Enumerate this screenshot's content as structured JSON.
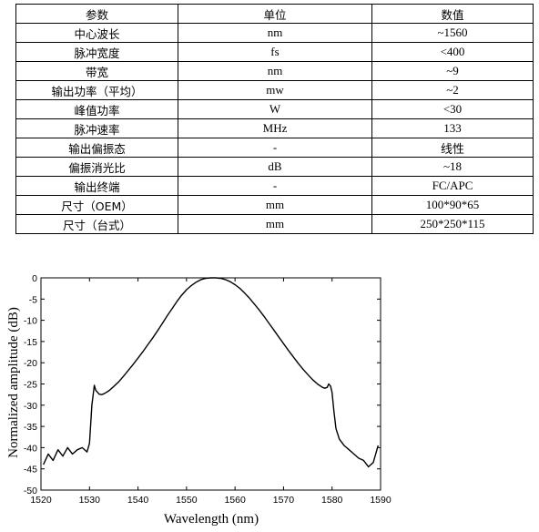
{
  "table": {
    "headers": [
      "参数",
      "单位",
      "数值"
    ],
    "rows": [
      [
        "中心波长",
        "nm",
        "~1560"
      ],
      [
        "脉冲宽度",
        "fs",
        "<400"
      ],
      [
        "带宽",
        "nm",
        "~9"
      ],
      [
        "输出功率（平均）",
        "mw",
        "~2"
      ],
      [
        "峰值功率",
        "W",
        "<30"
      ],
      [
        "脉冲速率",
        "MHz",
        "133"
      ],
      [
        "输出偏振态",
        "-",
        "线性"
      ],
      [
        "偏振消光比",
        "dB",
        "~18"
      ],
      [
        "输出终端",
        "-",
        "FC/APC"
      ],
      [
        "尺寸（OEM）",
        "mm",
        "100*90*65"
      ],
      [
        "尺寸（台式）",
        "mm",
        "250*250*115"
      ]
    ]
  },
  "chart_data": {
    "type": "line",
    "xlabel": "Wavelength (nm)",
    "ylabel": "Normalized amplitude (dB)",
    "xlim": [
      1520,
      1590
    ],
    "ylim": [
      -50,
      0
    ],
    "xticks": [
      1520,
      1530,
      1540,
      1550,
      1560,
      1570,
      1580,
      1590
    ],
    "yticks": [
      0,
      -5,
      -10,
      -15,
      -20,
      -25,
      -30,
      -35,
      -40,
      -45,
      -50
    ],
    "grid": false,
    "series": [
      {
        "color": "#000000",
        "x": [
          1520.5,
          1521.5,
          1522.5,
          1523.5,
          1524.5,
          1525.5,
          1526.5,
          1527.5,
          1528.5,
          1529.5,
          1530.0,
          1530.5,
          1531.0,
          1531.3,
          1531.7,
          1532.0,
          1532.5,
          1533.0,
          1534.0,
          1535.0,
          1536.0,
          1537.0,
          1538.0,
          1539.0,
          1540.0,
          1541.0,
          1542.0,
          1543.0,
          1544.0,
          1545.0,
          1546.0,
          1547.0,
          1548.0,
          1549.0,
          1550.0,
          1551.0,
          1552.0,
          1553.0,
          1554.0,
          1555.0,
          1556.0,
          1557.0,
          1558.0,
          1559.0,
          1560.0,
          1561.0,
          1562.0,
          1563.0,
          1564.0,
          1565.0,
          1566.0,
          1567.0,
          1568.0,
          1569.0,
          1570.0,
          1571.0,
          1572.0,
          1573.0,
          1574.0,
          1575.0,
          1576.0,
          1577.0,
          1578.0,
          1578.5,
          1579.0,
          1579.3,
          1579.7,
          1580.0,
          1580.4,
          1580.8,
          1581.5,
          1582.5,
          1583.5,
          1584.5,
          1585.5,
          1586.5,
          1587.5,
          1588.5,
          1589.5
        ],
        "y": [
          -44.0,
          -41.5,
          -43.0,
          -40.5,
          -42.0,
          -40.0,
          -41.5,
          -40.5,
          -40.0,
          -41.0,
          -39.0,
          -30.0,
          -25.3,
          -26.5,
          -27.0,
          -27.4,
          -27.5,
          -27.3,
          -26.6,
          -25.6,
          -24.5,
          -23.2,
          -21.8,
          -20.4,
          -18.9,
          -17.4,
          -15.8,
          -14.2,
          -12.5,
          -10.8,
          -9.0,
          -7.3,
          -5.6,
          -4.1,
          -2.8,
          -1.8,
          -1.0,
          -0.4,
          -0.1,
          0.0,
          0.0,
          -0.1,
          -0.4,
          -0.9,
          -1.6,
          -2.5,
          -3.6,
          -4.8,
          -6.2,
          -7.6,
          -9.1,
          -10.7,
          -12.3,
          -13.9,
          -15.5,
          -17.1,
          -18.6,
          -20.1,
          -21.5,
          -22.8,
          -24.0,
          -25.0,
          -25.8,
          -26.0,
          -25.8,
          -25.0,
          -25.5,
          -27.0,
          -31.5,
          -35.5,
          -38.0,
          -39.5,
          -40.5,
          -41.5,
          -42.5,
          -43.0,
          -44.5,
          -43.5,
          -39.5
        ]
      }
    ]
  }
}
